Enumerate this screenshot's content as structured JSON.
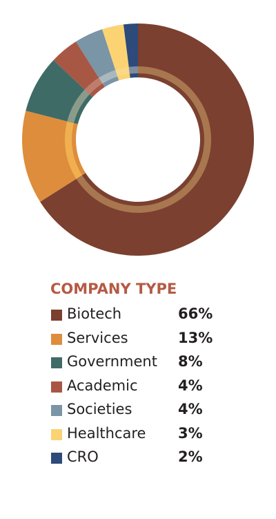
{
  "chart_data": {
    "type": "pie",
    "title": "COMPANY TYPE",
    "categories": [
      "Biotech",
      "Services",
      "Government",
      "Academic",
      "Societies",
      "Healthcare",
      "CRO"
    ],
    "values": [
      66,
      13,
      8,
      4,
      4,
      3,
      2
    ],
    "value_labels": [
      "66%",
      "13%",
      "8%",
      "4%",
      "4%",
      "3%",
      "2%"
    ],
    "colors": [
      "#7b4030",
      "#de8d3c",
      "#3f6b66",
      "#a85745",
      "#7a95a6",
      "#fbd373",
      "#2d4a7a"
    ],
    "inner_ring_colors": [
      "#a8774f",
      "#f0b04f",
      "#8a9c89",
      "#c07d6c",
      "#a9b8bd",
      "#f9d887",
      "#7e8c9e"
    ],
    "title_color": "#b55a45",
    "legend_position": "bottom",
    "style": "donut"
  }
}
